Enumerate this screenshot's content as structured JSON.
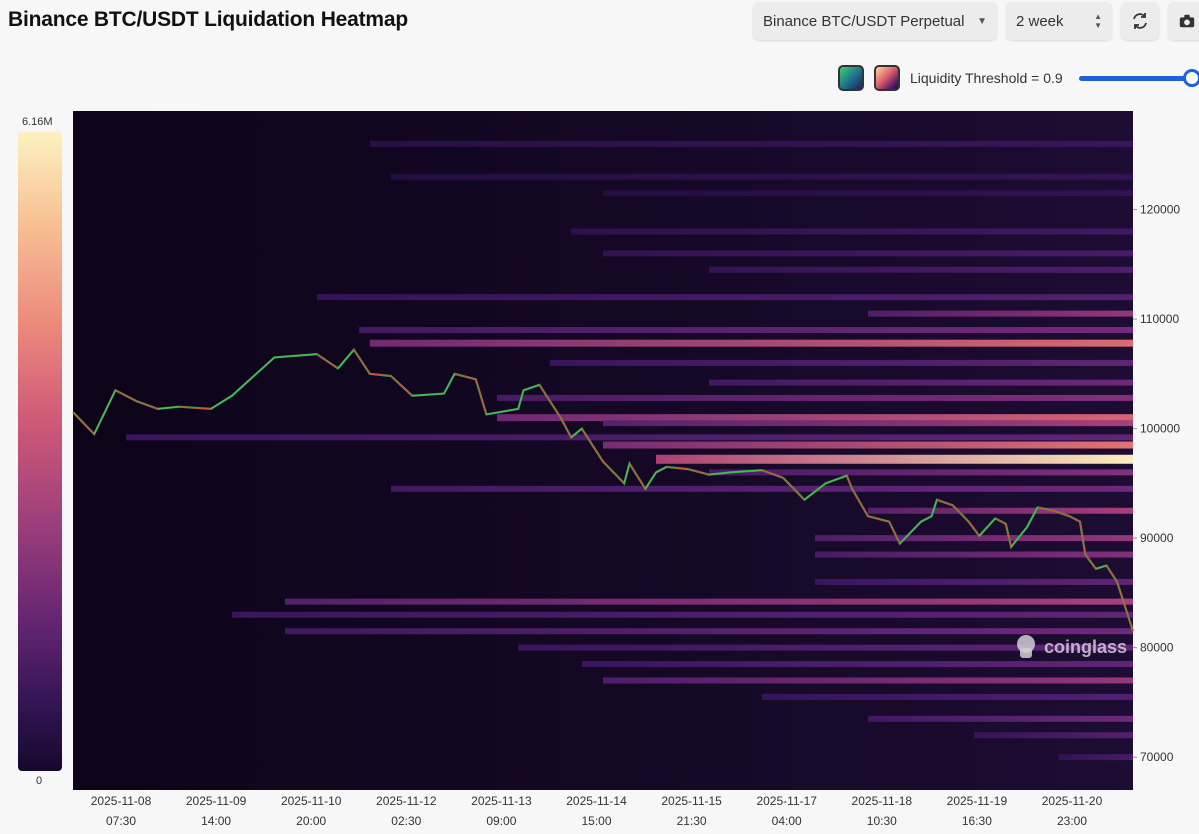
{
  "header": {
    "title": "Binance BTC/USDT Liquidation Heatmap",
    "pair_select": "Binance BTC/USDT Perpetual",
    "range_select": "2 week",
    "refresh_icon": "refresh-icon",
    "camera_icon": "camera-icon"
  },
  "threshold": {
    "label": "Liquidity Threshold = 0.9",
    "value": 0.9,
    "palette_green_icon": "green-palette-swatch",
    "palette_magma_icon": "magma-palette-swatch"
  },
  "colorbar": {
    "max_label": "6.16M",
    "min_label": "0"
  },
  "watermark": "coinglass",
  "chart_data": {
    "type": "heatmap",
    "title": "Binance BTC/USDT Liquidation Heatmap",
    "xlabel": "",
    "ylabel": "",
    "ylim": [
      67000,
      129000
    ],
    "x_tick_labels": [
      [
        "2025-11-08",
        "07:30"
      ],
      [
        "2025-11-09",
        "14:00"
      ],
      [
        "2025-11-10",
        "20:00"
      ],
      [
        "2025-11-12",
        "02:30"
      ],
      [
        "2025-11-13",
        "09:00"
      ],
      [
        "2025-11-14",
        "15:00"
      ],
      [
        "2025-11-15",
        "21:30"
      ],
      [
        "2025-11-17",
        "04:00"
      ],
      [
        "2025-11-18",
        "10:30"
      ],
      [
        "2025-11-19",
        "16:30"
      ],
      [
        "2025-11-20",
        "23:00"
      ]
    ],
    "y_ticks": [
      70000,
      80000,
      90000,
      100000,
      110000,
      120000
    ],
    "color_scale": {
      "min": 0,
      "max": 6160000,
      "palette": "magma"
    },
    "liquidation_bands": [
      {
        "price": 126000,
        "start": 0.28,
        "intensity": 0.18
      },
      {
        "price": 123000,
        "start": 0.3,
        "intensity": 0.15
      },
      {
        "price": 121500,
        "start": 0.5,
        "intensity": 0.14
      },
      {
        "price": 118000,
        "start": 0.47,
        "intensity": 0.22
      },
      {
        "price": 116000,
        "start": 0.5,
        "intensity": 0.25
      },
      {
        "price": 114500,
        "start": 0.6,
        "intensity": 0.28
      },
      {
        "price": 112000,
        "start": 0.23,
        "intensity": 0.3
      },
      {
        "price": 110500,
        "start": 0.75,
        "intensity": 0.5
      },
      {
        "price": 109000,
        "start": 0.27,
        "intensity": 0.42
      },
      {
        "price": 107800,
        "start": 0.28,
        "intensity": 0.72
      },
      {
        "price": 106000,
        "start": 0.45,
        "intensity": 0.35
      },
      {
        "price": 104200,
        "start": 0.6,
        "intensity": 0.4
      },
      {
        "price": 102800,
        "start": 0.4,
        "intensity": 0.45
      },
      {
        "price": 101000,
        "start": 0.4,
        "intensity": 0.7
      },
      {
        "price": 100500,
        "start": 0.5,
        "intensity": 0.55
      },
      {
        "price": 99200,
        "start": 0.05,
        "intensity": 0.35
      },
      {
        "price": 98500,
        "start": 0.5,
        "intensity": 0.75
      },
      {
        "price": 97200,
        "start": 0.55,
        "intensity": 1.0
      },
      {
        "price": 96000,
        "start": 0.6,
        "intensity": 0.45
      },
      {
        "price": 94500,
        "start": 0.3,
        "intensity": 0.4
      },
      {
        "price": 92500,
        "start": 0.75,
        "intensity": 0.55
      },
      {
        "price": 90000,
        "start": 0.7,
        "intensity": 0.5
      },
      {
        "price": 88500,
        "start": 0.7,
        "intensity": 0.45
      },
      {
        "price": 86000,
        "start": 0.7,
        "intensity": 0.35
      },
      {
        "price": 84200,
        "start": 0.2,
        "intensity": 0.55
      },
      {
        "price": 83000,
        "start": 0.15,
        "intensity": 0.35
      },
      {
        "price": 81500,
        "start": 0.2,
        "intensity": 0.4
      },
      {
        "price": 80000,
        "start": 0.42,
        "intensity": 0.35
      },
      {
        "price": 78500,
        "start": 0.48,
        "intensity": 0.35
      },
      {
        "price": 77000,
        "start": 0.5,
        "intensity": 0.5
      },
      {
        "price": 75500,
        "start": 0.65,
        "intensity": 0.3
      },
      {
        "price": 73500,
        "start": 0.75,
        "intensity": 0.4
      },
      {
        "price": 72000,
        "start": 0.85,
        "intensity": 0.3
      },
      {
        "price": 70000,
        "start": 0.93,
        "intensity": 0.25
      }
    ],
    "price_series": {
      "name": "",
      "values": [
        [
          0.0,
          101500
        ],
        [
          0.02,
          99500
        ],
        [
          0.04,
          103500
        ],
        [
          0.06,
          102500
        ],
        [
          0.08,
          101800
        ],
        [
          0.1,
          102000
        ],
        [
          0.13,
          101800
        ],
        [
          0.15,
          103000
        ],
        [
          0.19,
          106500
        ],
        [
          0.23,
          106800
        ],
        [
          0.25,
          105500
        ],
        [
          0.265,
          107200
        ],
        [
          0.28,
          105000
        ],
        [
          0.3,
          104800
        ],
        [
          0.32,
          103000
        ],
        [
          0.35,
          103200
        ],
        [
          0.36,
          105000
        ],
        [
          0.38,
          104500
        ],
        [
          0.39,
          101300
        ],
        [
          0.42,
          101800
        ],
        [
          0.425,
          103500
        ],
        [
          0.44,
          104000
        ],
        [
          0.45,
          102500
        ],
        [
          0.46,
          101000
        ],
        [
          0.47,
          99200
        ],
        [
          0.48,
          100000
        ],
        [
          0.5,
          97000
        ],
        [
          0.51,
          96000
        ],
        [
          0.52,
          95000
        ],
        [
          0.525,
          96800
        ],
        [
          0.54,
          94500
        ],
        [
          0.55,
          96000
        ],
        [
          0.56,
          96500
        ],
        [
          0.58,
          96300
        ],
        [
          0.6,
          95800
        ],
        [
          0.62,
          96000
        ],
        [
          0.65,
          96200
        ],
        [
          0.67,
          95500
        ],
        [
          0.68,
          94500
        ],
        [
          0.69,
          93500
        ],
        [
          0.71,
          95000
        ],
        [
          0.73,
          95700
        ],
        [
          0.735,
          94500
        ],
        [
          0.75,
          92000
        ],
        [
          0.77,
          91500
        ],
        [
          0.78,
          89500
        ],
        [
          0.79,
          90500
        ],
        [
          0.8,
          91500
        ],
        [
          0.81,
          92000
        ],
        [
          0.815,
          93500
        ],
        [
          0.83,
          93000
        ],
        [
          0.845,
          91500
        ],
        [
          0.855,
          90200
        ],
        [
          0.87,
          91800
        ],
        [
          0.88,
          91300
        ],
        [
          0.885,
          89200
        ],
        [
          0.9,
          91000
        ],
        [
          0.91,
          92800
        ],
        [
          0.925,
          92500
        ],
        [
          0.94,
          92000
        ],
        [
          0.95,
          91500
        ],
        [
          0.955,
          88500
        ],
        [
          0.965,
          87200
        ],
        [
          0.975,
          87500
        ],
        [
          0.985,
          86000
        ],
        [
          0.99,
          84500
        ],
        [
          1.0,
          81500
        ]
      ]
    },
    "grid": false,
    "legend": "none"
  }
}
